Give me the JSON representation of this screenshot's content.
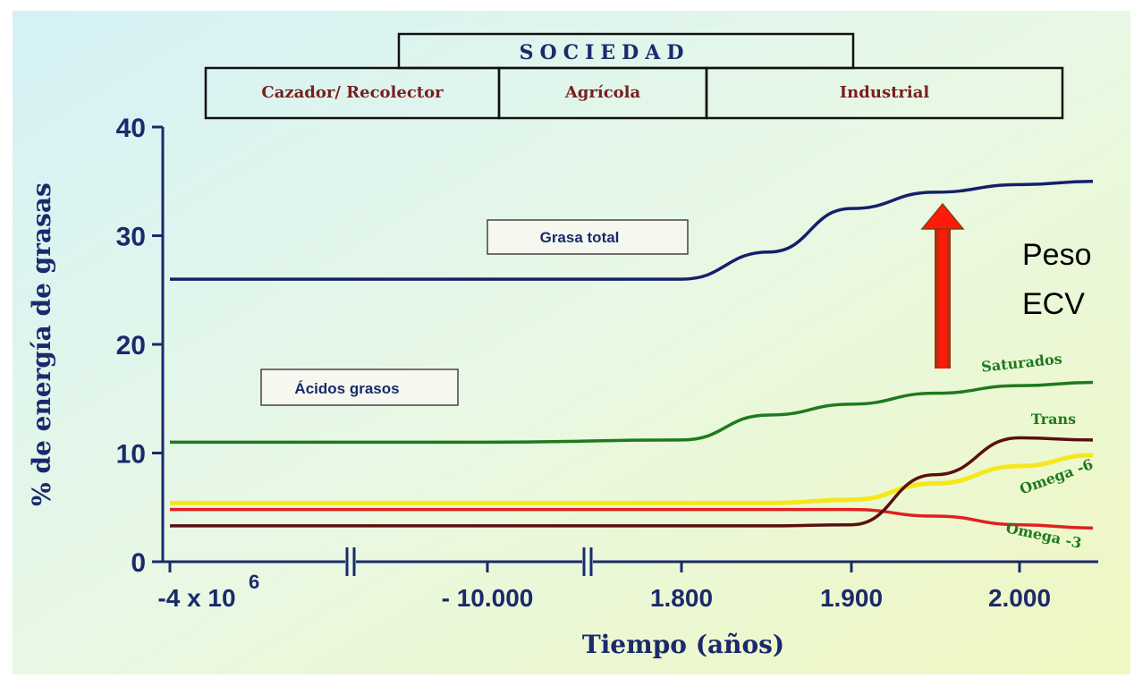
{
  "society": {
    "title": "SOCIEDAD",
    "periods": [
      "Cazador/ Recolector",
      "Agrícola",
      "Industrial"
    ]
  },
  "annotation": {
    "line1": "Peso",
    "line2": "ECV",
    "arrow_color": "#e31010"
  },
  "chart_data": {
    "type": "line",
    "title": "",
    "xlabel": "Tiempo (años)",
    "ylabel": "% de energía de grasas",
    "ylim": [
      0,
      40
    ],
    "yticks": [
      "0",
      "10",
      "20",
      "30",
      "40"
    ],
    "x_tick_labels": [
      "-4 x 10",
      "- 10.000",
      "1.800",
      "1.900",
      "2.000"
    ],
    "x_tick_superscript": "6",
    "x_axis_breaks": 2,
    "x": [
      "-4 x 10^6",
      "-10.000",
      "1.800",
      "1.850",
      "1.900",
      "1.950",
      "2.000",
      "2.020"
    ],
    "callouts": {
      "total": "Grasa total",
      "fatty_acids": "Ácidos grasos"
    },
    "series": [
      {
        "name": "",
        "label_key": "total",
        "color": "#14206b",
        "values": [
          26,
          26,
          26,
          28.5,
          32.5,
          34,
          34.7,
          35
        ]
      },
      {
        "name": "Saturados",
        "color": "#1e7a1e",
        "values": [
          11,
          11,
          11.2,
          13.5,
          14.5,
          15.5,
          16.2,
          16.5
        ]
      },
      {
        "name": "Trans",
        "color": "#5a0f0f",
        "values": [
          3.3,
          3.3,
          3.3,
          3.3,
          3.4,
          8,
          11.4,
          11.2
        ]
      },
      {
        "name": "Omega -6",
        "color": "#f4e81c",
        "values": [
          5.4,
          5.4,
          5.4,
          5.4,
          5.7,
          7.2,
          8.8,
          9.8
        ]
      },
      {
        "name": "Omega -3",
        "color": "#e02020",
        "values": [
          4.8,
          4.8,
          4.8,
          4.8,
          4.8,
          4.2,
          3.4,
          3.1
        ]
      }
    ],
    "legend": "inline labels"
  }
}
